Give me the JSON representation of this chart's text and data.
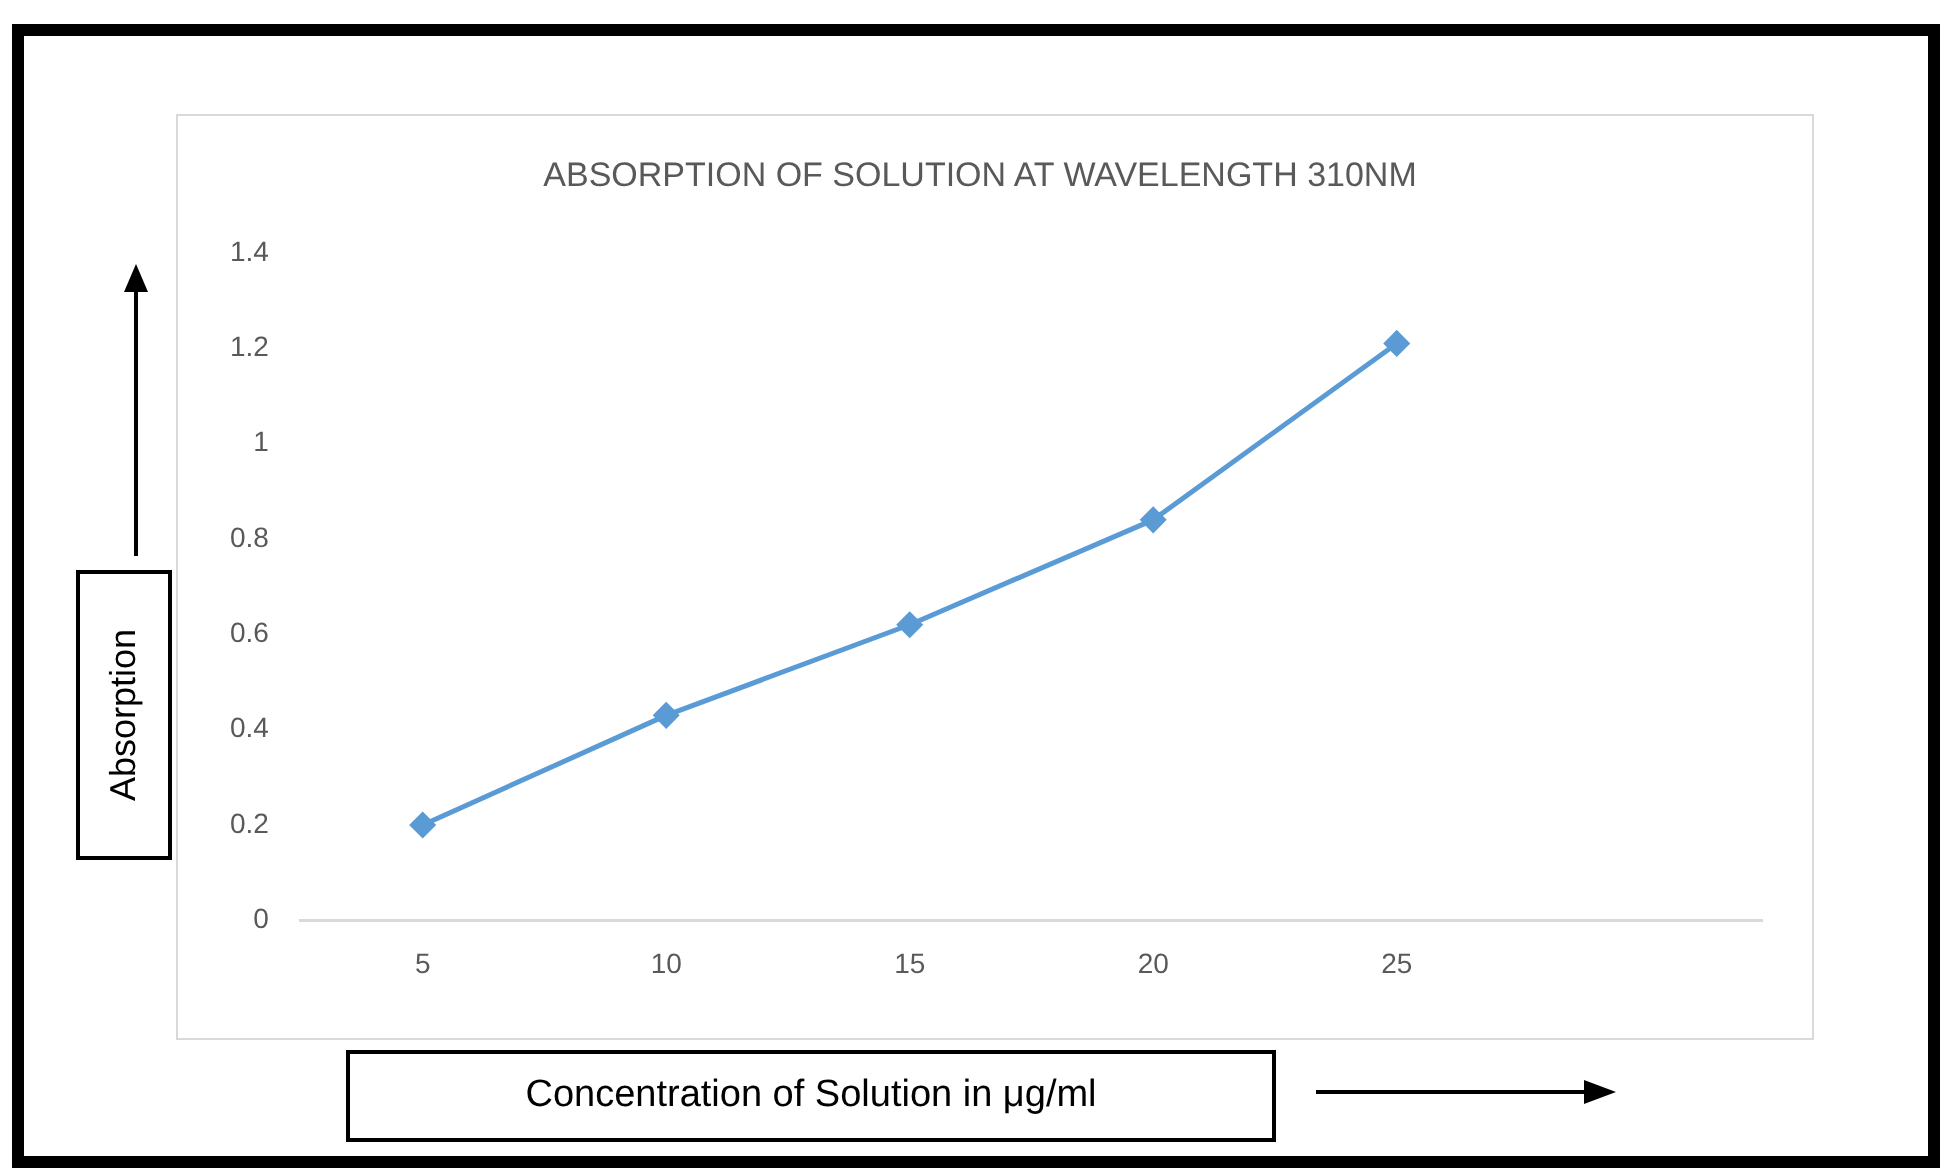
{
  "chart_data": {
    "type": "line",
    "title": "ABSORPTION OF SOLUTION AT WAVELENGTH 310NM",
    "xlabel": "Concentration of Solution in μg/ml",
    "ylabel": "Absorption",
    "categories": [
      "5",
      "10",
      "15",
      "20",
      "25",
      null
    ],
    "series": [
      {
        "color": "#5b9bd5",
        "values": [
          0.2,
          0.43,
          0.62,
          0.84,
          1.21,
          null
        ]
      }
    ],
    "ylim": [
      0,
      1.4
    ],
    "yticks": [
      0,
      0.2,
      0.4,
      0.6,
      0.8,
      1,
      1.2,
      1.4
    ],
    "marker": "diamond",
    "line_style": "solid",
    "legend": false
  }
}
